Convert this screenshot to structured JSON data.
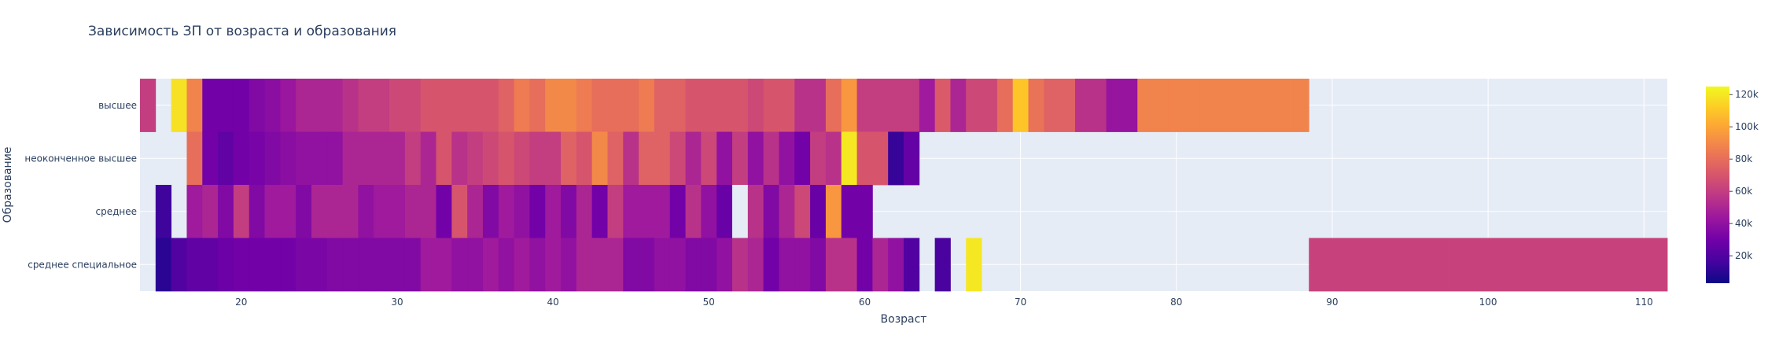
{
  "chart_data": {
    "type": "heatmap",
    "title": "Зависимость ЗП от возраста и образования",
    "xlabel": "Возраст",
    "ylabel": "Образование",
    "xlim": [
      13.5,
      111.5
    ],
    "x_ticks": [
      20,
      30,
      40,
      50,
      60,
      70,
      80,
      90,
      100,
      110
    ],
    "categories": [
      "высшее",
      "неоконченное высшее",
      "среднее",
      "среднее специальное"
    ],
    "colorbar": {
      "ticks": [
        "20k",
        "40k",
        "60k",
        "80k",
        "100k",
        "120k"
      ],
      "min": 3000,
      "max": 125000
    },
    "colorscale": [
      "#0d0887",
      "#46039f",
      "#7201a8",
      "#9c179e",
      "#bd3786",
      "#d8576b",
      "#ed7953",
      "#fb9f3a",
      "#fdca26",
      "#f0f921"
    ],
    "rows": [
      {
        "name": "высшее",
        "cells": [
          [
            14,
            60000
          ],
          [
            16,
            118000
          ],
          [
            17,
            88000
          ],
          [
            18,
            30000
          ],
          [
            19,
            30000
          ],
          [
            20,
            30000
          ],
          [
            21,
            35000
          ],
          [
            22,
            38000
          ],
          [
            23,
            43000
          ],
          [
            24,
            50000
          ],
          [
            25,
            50000
          ],
          [
            26,
            50000
          ],
          [
            27,
            55000
          ],
          [
            28,
            60000
          ],
          [
            29,
            60000
          ],
          [
            30,
            65000
          ],
          [
            31,
            65000
          ],
          [
            32,
            70000
          ],
          [
            33,
            70000
          ],
          [
            34,
            70000
          ],
          [
            35,
            70000
          ],
          [
            36,
            70000
          ],
          [
            37,
            75000
          ],
          [
            38,
            85000
          ],
          [
            39,
            80000
          ],
          [
            40,
            90000
          ],
          [
            41,
            90000
          ],
          [
            42,
            85000
          ],
          [
            43,
            80000
          ],
          [
            44,
            80000
          ],
          [
            45,
            80000
          ],
          [
            46,
            85000
          ],
          [
            47,
            75000
          ],
          [
            48,
            75000
          ],
          [
            49,
            70000
          ],
          [
            50,
            70000
          ],
          [
            51,
            70000
          ],
          [
            52,
            70000
          ],
          [
            53,
            65000
          ],
          [
            54,
            70000
          ],
          [
            55,
            70000
          ],
          [
            56,
            55000
          ],
          [
            57,
            55000
          ],
          [
            58,
            80000
          ],
          [
            59,
            95000
          ],
          [
            60,
            60000
          ],
          [
            61,
            60000
          ],
          [
            62,
            60000
          ],
          [
            63,
            60000
          ],
          [
            64,
            45000
          ],
          [
            65,
            72000
          ],
          [
            66,
            50000
          ],
          [
            67,
            65000
          ],
          [
            68,
            65000
          ],
          [
            69,
            80000
          ],
          [
            70,
            110000
          ],
          [
            71,
            82000
          ],
          [
            72,
            75000
          ],
          [
            73,
            75000
          ],
          [
            74,
            55000
          ],
          [
            75,
            55000
          ],
          [
            76,
            42000
          ],
          [
            77,
            42000
          ],
          [
            78,
            88000
          ],
          [
            79,
            88000
          ],
          [
            80,
            88000
          ],
          [
            81,
            88000
          ],
          [
            82,
            88000
          ],
          [
            83,
            88000
          ],
          [
            84,
            88000
          ],
          [
            85,
            88000
          ],
          [
            86,
            88000
          ],
          [
            87,
            88000
          ],
          [
            88,
            88000
          ]
        ]
      },
      {
        "name": "неоконченное высшее",
        "cells": [
          [
            17,
            80000
          ],
          [
            18,
            30000
          ],
          [
            19,
            25000
          ],
          [
            20,
            30000
          ],
          [
            21,
            32000
          ],
          [
            22,
            35000
          ],
          [
            23,
            38000
          ],
          [
            24,
            40000
          ],
          [
            25,
            40000
          ],
          [
            26,
            40000
          ],
          [
            27,
            50000
          ],
          [
            28,
            50000
          ],
          [
            29,
            50000
          ],
          [
            30,
            50000
          ],
          [
            31,
            60000
          ],
          [
            32,
            50000
          ],
          [
            33,
            70000
          ],
          [
            34,
            55000
          ],
          [
            35,
            60000
          ],
          [
            36,
            65000
          ],
          [
            37,
            70000
          ],
          [
            38,
            65000
          ],
          [
            39,
            60000
          ],
          [
            40,
            60000
          ],
          [
            41,
            75000
          ],
          [
            42,
            70000
          ],
          [
            43,
            90000
          ],
          [
            44,
            75000
          ],
          [
            45,
            55000
          ],
          [
            46,
            75000
          ],
          [
            47,
            75000
          ],
          [
            48,
            65000
          ],
          [
            49,
            50000
          ],
          [
            50,
            65000
          ],
          [
            51,
            40000
          ],
          [
            52,
            60000
          ],
          [
            53,
            40000
          ],
          [
            54,
            55000
          ],
          [
            55,
            40000
          ],
          [
            56,
            30000
          ],
          [
            57,
            60000
          ],
          [
            58,
            55000
          ],
          [
            59,
            120000
          ],
          [
            60,
            70000
          ],
          [
            61,
            70000
          ],
          [
            62,
            13000
          ],
          [
            63,
            26000
          ]
        ]
      },
      {
        "name": "среднее",
        "cells": [
          [
            15,
            15000
          ],
          [
            17,
            45000
          ],
          [
            18,
            50000
          ],
          [
            19,
            35000
          ],
          [
            20,
            60000
          ],
          [
            21,
            35000
          ],
          [
            22,
            45000
          ],
          [
            23,
            45000
          ],
          [
            24,
            35000
          ],
          [
            25,
            50000
          ],
          [
            26,
            50000
          ],
          [
            27,
            50000
          ],
          [
            28,
            40000
          ],
          [
            29,
            45000
          ],
          [
            30,
            45000
          ],
          [
            31,
            50000
          ],
          [
            32,
            50000
          ],
          [
            33,
            30000
          ],
          [
            34,
            70000
          ],
          [
            35,
            50000
          ],
          [
            36,
            35000
          ],
          [
            37,
            45000
          ],
          [
            38,
            40000
          ],
          [
            39,
            30000
          ],
          [
            40,
            45000
          ],
          [
            41,
            35000
          ],
          [
            42,
            50000
          ],
          [
            43,
            30000
          ],
          [
            44,
            60000
          ],
          [
            45,
            45000
          ],
          [
            46,
            45000
          ],
          [
            47,
            45000
          ],
          [
            48,
            30000
          ],
          [
            49,
            55000
          ],
          [
            50,
            40000
          ],
          [
            51,
            27000
          ],
          [
            52,
            null
          ],
          [
            53,
            55000
          ],
          [
            54,
            35000
          ],
          [
            55,
            50000
          ],
          [
            56,
            65000
          ],
          [
            57,
            27000
          ],
          [
            58,
            95000
          ],
          [
            59,
            30000
          ],
          [
            60,
            30000
          ]
        ]
      },
      {
        "name": "среднее специальное",
        "cells": [
          [
            15,
            10000
          ],
          [
            16,
            20000
          ],
          [
            17,
            25000
          ],
          [
            18,
            25000
          ],
          [
            19,
            28000
          ],
          [
            20,
            30000
          ],
          [
            21,
            30000
          ],
          [
            22,
            30000
          ],
          [
            23,
            30000
          ],
          [
            24,
            33000
          ],
          [
            25,
            33000
          ],
          [
            26,
            35000
          ],
          [
            27,
            35000
          ],
          [
            28,
            35000
          ],
          [
            29,
            35000
          ],
          [
            30,
            35000
          ],
          [
            31,
            35000
          ],
          [
            32,
            45000
          ],
          [
            33,
            45000
          ],
          [
            34,
            40000
          ],
          [
            35,
            40000
          ],
          [
            36,
            45000
          ],
          [
            37,
            40000
          ],
          [
            38,
            45000
          ],
          [
            39,
            40000
          ],
          [
            40,
            45000
          ],
          [
            41,
            40000
          ],
          [
            42,
            50000
          ],
          [
            43,
            50000
          ],
          [
            44,
            50000
          ],
          [
            45,
            35000
          ],
          [
            46,
            35000
          ],
          [
            47,
            40000
          ],
          [
            48,
            40000
          ],
          [
            49,
            35000
          ],
          [
            50,
            35000
          ],
          [
            51,
            40000
          ],
          [
            52,
            55000
          ],
          [
            53,
            50000
          ],
          [
            54,
            30000
          ],
          [
            55,
            40000
          ],
          [
            56,
            40000
          ],
          [
            57,
            35000
          ],
          [
            58,
            55000
          ],
          [
            59,
            55000
          ],
          [
            60,
            30000
          ],
          [
            61,
            50000
          ],
          [
            62,
            40000
          ],
          [
            63,
            20000
          ],
          [
            65,
            18000
          ],
          [
            67,
            120000
          ],
          [
            89,
            62000
          ],
          [
            90,
            62000
          ],
          [
            91,
            62000
          ],
          [
            92,
            62000
          ],
          [
            93,
            62000
          ],
          [
            94,
            62000
          ],
          [
            95,
            62000
          ],
          [
            96,
            62000
          ],
          [
            97,
            62000
          ],
          [
            98,
            62000
          ],
          [
            99,
            62000
          ],
          [
            100,
            62000
          ],
          [
            101,
            62000
          ],
          [
            102,
            62000
          ],
          [
            103,
            62000
          ],
          [
            104,
            62000
          ],
          [
            105,
            62000
          ],
          [
            106,
            62000
          ],
          [
            107,
            62000
          ],
          [
            108,
            62000
          ],
          [
            109,
            62000
          ],
          [
            110,
            62000
          ],
          [
            111,
            62000
          ]
        ]
      }
    ]
  }
}
